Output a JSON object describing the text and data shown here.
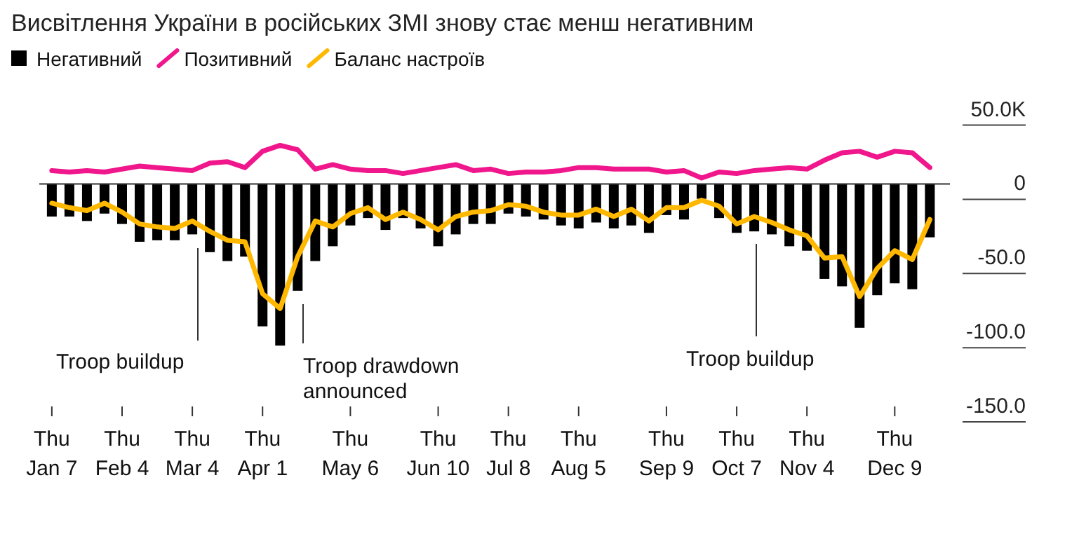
{
  "chart_data": {
    "type": "bar",
    "title": "Висвітлення України в російських ЗМІ знову стає менш негативним",
    "x": [
      "--01-07",
      "--01-14",
      "--01-21",
      "--01-28",
      "--02-04",
      "--02-11",
      "--02-18",
      "--02-25",
      "--03-04",
      "--03-11",
      "--03-18",
      "--03-25",
      "--04-01",
      "--04-08",
      "--04-15",
      "--04-22",
      "--04-29",
      "--05-06",
      "--05-13",
      "--05-20",
      "--05-27",
      "--06-03",
      "--06-10",
      "--06-17",
      "--06-24",
      "--07-01",
      "--07-08",
      "--07-15",
      "--07-22",
      "--07-29",
      "--08-05",
      "--08-12",
      "--08-19",
      "--08-26",
      "--09-02",
      "--09-09",
      "--09-16",
      "--09-23",
      "--09-30",
      "--10-07",
      "--10-14",
      "--10-21",
      "--10-28",
      "--11-04",
      "--11-11",
      "--11-18",
      "--11-25",
      "--12-02",
      "--12-09",
      "--12-16",
      "--12-23"
    ],
    "series": [
      {
        "name": "Негативний",
        "color": "#000000",
        "values": [
          -22,
          -22,
          -25,
          -20,
          -27,
          -39,
          -38,
          -38,
          -34,
          -46,
          -52,
          -49,
          -96,
          -109,
          -72,
          -52,
          -42,
          -28,
          -23,
          -31,
          -23,
          -30,
          -42,
          -34,
          -27,
          -27,
          -20,
          -22,
          -24,
          -28,
          -30,
          -26,
          -30,
          -28,
          -33,
          -21,
          -24,
          -10,
          -23,
          -33,
          -32,
          -34,
          -42,
          -45,
          -64,
          -69,
          -97,
          -75,
          -67,
          -71,
          -36
        ]
      },
      {
        "name": "Позитивний",
        "type": "line",
        "color": "#f0168c",
        "values": [
          9,
          8,
          9,
          8,
          10,
          12,
          11,
          10,
          9,
          14,
          15,
          11,
          22,
          26,
          23,
          10,
          13,
          10,
          9,
          9,
          7,
          9,
          11,
          13,
          9,
          10,
          7,
          8,
          8,
          9,
          11,
          11,
          10,
          10,
          10,
          8,
          9,
          4,
          8,
          7,
          9,
          10,
          11,
          10,
          16,
          21,
          22,
          18,
          22,
          21,
          11
        ]
      },
      {
        "name": "Баланс настроїв",
        "type": "line",
        "color": "#ffb800",
        "values": [
          -13,
          -16,
          -18,
          -13,
          -19,
          -27,
          -29,
          -30,
          -25,
          -32,
          -38,
          -39,
          -74,
          -84,
          -49,
          -25,
          -29,
          -20,
          -16,
          -24,
          -19,
          -24,
          -31,
          -22,
          -19,
          -18,
          -14,
          -15,
          -19,
          -21,
          -21,
          -17,
          -22,
          -17,
          -25,
          -16,
          -16,
          -11,
          -15,
          -27,
          -22,
          -26,
          -31,
          -35,
          -50,
          -49,
          -76,
          -57,
          -45,
          -51,
          -24
        ]
      }
    ],
    "xlim": [
      "--01-02",
      "--12-31"
    ],
    "xticks": [
      {
        "value": "--01-07",
        "label": "Thu\nJan 7"
      },
      {
        "value": "--02-04",
        "label": "Thu\nFeb 4"
      },
      {
        "value": "--03-04",
        "label": "Thu\nMar 4"
      },
      {
        "value": "--04-01",
        "label": "Thu\nApr 1"
      },
      {
        "value": "--05-06",
        "label": "Thu\nMay 6"
      },
      {
        "value": "--06-10",
        "label": "Thu\nJun 10"
      },
      {
        "value": "--07-08",
        "label": "Thu\nJul 8"
      },
      {
        "value": "--08-05",
        "label": "Thu\nAug 5"
      },
      {
        "value": "--09-09",
        "label": "Thu\nSep 9"
      },
      {
        "value": "--10-07",
        "label": "Thu\nOct 7"
      },
      {
        "value": "--11-04",
        "label": "Thu\nNov 4"
      },
      {
        "value": "--12-09",
        "label": "Thu\nDec 9"
      }
    ],
    "ylim": [
      -150,
      50
    ],
    "yticks": [
      {
        "value": 50,
        "label": "50.0K"
      },
      0,
      {
        "value": -50,
        "label": "-50.0"
      },
      {
        "value": -100,
        "label": "-100.0"
      },
      {
        "value": -150,
        "label": "-150.0"
      }
    ],
    "legend": "top left",
    "annotations": [
      "Troop buildup",
      "Troop drawdown\nannounced",
      "Troop buildup"
    ]
  }
}
